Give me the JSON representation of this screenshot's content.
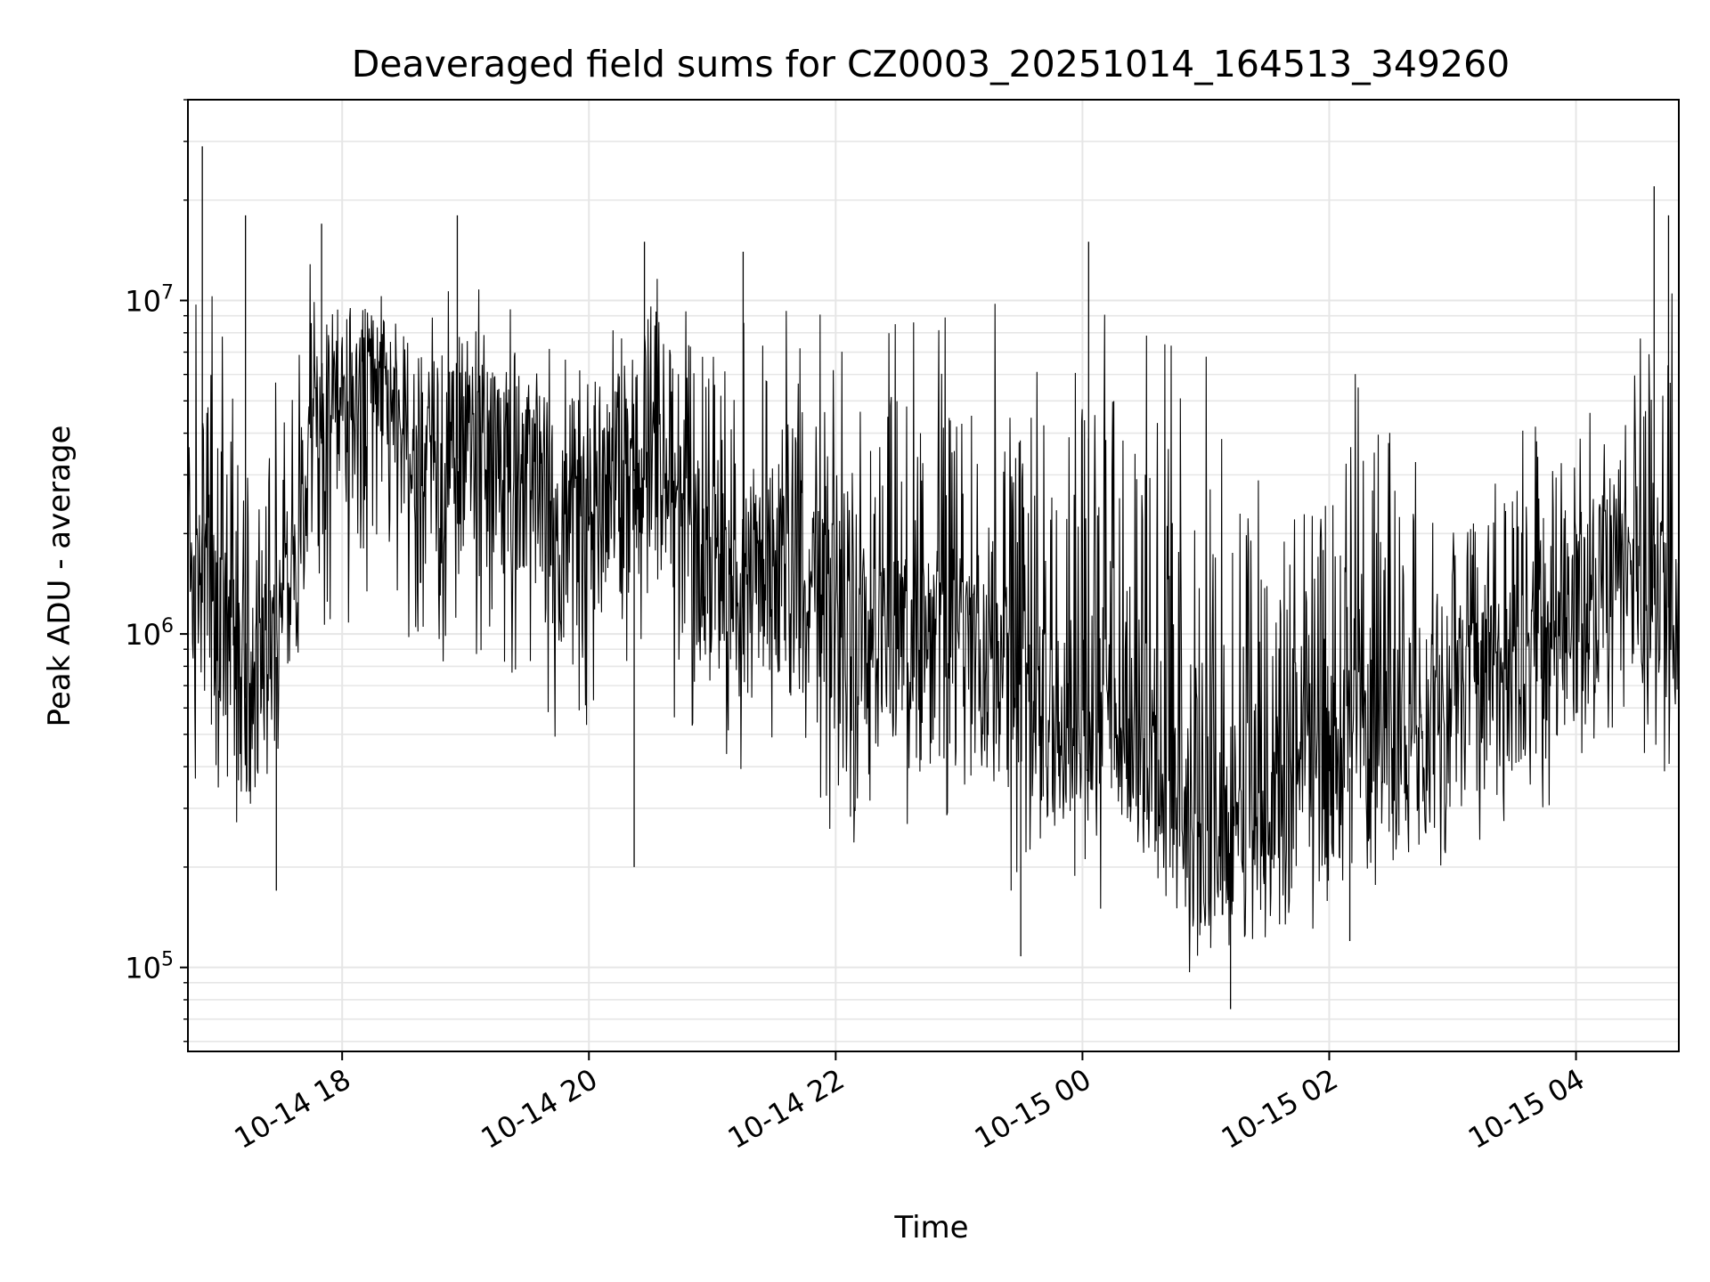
{
  "chart_data": {
    "type": "line",
    "title": "Deaveraged field sums for CZ0003_20251014_164513_349260",
    "xlabel": "Time",
    "ylabel": "Peak ADU - average",
    "xscale": "time",
    "yscale": "log",
    "xlim": [
      "2025-10-14 16:45",
      "2025-10-15 04:50"
    ],
    "ylim": [
      56000,
      40000000
    ],
    "grid": true,
    "line_color": "#000000",
    "x_ticks": [
      {
        "value": "2025-10-14 18:00",
        "label": "10-14 18"
      },
      {
        "value": "2025-10-14 20:00",
        "label": "10-14 20"
      },
      {
        "value": "2025-10-14 22:00",
        "label": "10-14 22"
      },
      {
        "value": "2025-10-15 00:00",
        "label": "10-15 00"
      },
      {
        "value": "2025-10-15 02:00",
        "label": "10-15 02"
      },
      {
        "value": "2025-10-15 04:00",
        "label": "10-15 04"
      }
    ],
    "y_ticks": [
      {
        "value": 100000,
        "base": "10",
        "exp": "5"
      },
      {
        "value": 1000000,
        "base": "10",
        "exp": "6"
      },
      {
        "value": 10000000,
        "base": "10",
        "exp": "7"
      }
    ],
    "series": [
      {
        "x": [
          "2025-10-14 16:45",
          "2025-10-14 17:00",
          "2025-10-14 17:15",
          "2025-10-14 17:30",
          "2025-10-14 17:45",
          "2025-10-14 18:00",
          "2025-10-14 18:15",
          "2025-10-14 18:30",
          "2025-10-14 18:45",
          "2025-10-14 19:00",
          "2025-10-14 19:15",
          "2025-10-14 19:30",
          "2025-10-14 19:45",
          "2025-10-14 20:00",
          "2025-10-14 20:15",
          "2025-10-14 20:30",
          "2025-10-14 20:45",
          "2025-10-14 21:00",
          "2025-10-14 21:15",
          "2025-10-14 21:30",
          "2025-10-14 21:45",
          "2025-10-14 22:00",
          "2025-10-14 22:15",
          "2025-10-14 22:30",
          "2025-10-14 22:45",
          "2025-10-14 23:00",
          "2025-10-14 23:15",
          "2025-10-14 23:30",
          "2025-10-14 23:45",
          "2025-10-15 00:00",
          "2025-10-15 00:15",
          "2025-10-15 00:30",
          "2025-10-15 00:45",
          "2025-10-15 01:00",
          "2025-10-15 01:15",
          "2025-10-15 01:30",
          "2025-10-15 01:45",
          "2025-10-15 02:00",
          "2025-10-15 02:15",
          "2025-10-15 02:30",
          "2025-10-15 02:45",
          "2025-10-15 03:00",
          "2025-10-15 03:15",
          "2025-10-15 03:30",
          "2025-10-15 03:45",
          "2025-10-15 04:00",
          "2025-10-15 04:15",
          "2025-10-15 04:30",
          "2025-10-15 04:45"
        ],
        "y": [
          1500000,
          1000000,
          600000,
          900000,
          3500000,
          4200000,
          4800000,
          3800000,
          3000000,
          3500000,
          3300000,
          2600000,
          1800000,
          2000000,
          2500000,
          3000000,
          2000000,
          1400000,
          1200000,
          1500000,
          1300000,
          1100000,
          900000,
          900000,
          800000,
          750000,
          700000,
          600000,
          500000,
          600000,
          500000,
          400000,
          300000,
          250000,
          220000,
          240000,
          300000,
          350000,
          420000,
          480000,
          500000,
          550000,
          600000,
          700000,
          900000,
          1100000,
          1400000,
          1600000,
          1200000
        ],
        "envelope_low": [
          300000,
          250000,
          220000,
          400000,
          900000,
          1000000,
          1100000,
          900000,
          800000,
          900000,
          800000,
          600000,
          450000,
          400000,
          500000,
          600000,
          450000,
          350000,
          300000,
          320000,
          280000,
          250000,
          220000,
          200000,
          180000,
          180000,
          170000,
          160000,
          150000,
          150000,
          140000,
          120000,
          100000,
          90000,
          100000,
          110000,
          120000,
          140000,
          160000,
          180000,
          190000,
          200000,
          220000,
          250000,
          300000,
          350000,
          400000,
          450000,
          350000
        ],
        "envelope_high": [
          10000000,
          12000000,
          5000000,
          6000000,
          15000000,
          12000000,
          12000000,
          11000000,
          10000000,
          14000000,
          11000000,
          9000000,
          7000000,
          8000000,
          11000000,
          15000000,
          10000000,
          12000000,
          9000000,
          10000000,
          9000000,
          12000000,
          9000000,
          10000000,
          9000000,
          9000000,
          10000000,
          10000000,
          9000000,
          14000000,
          11000000,
          9000000,
          8000000,
          7000000,
          6000000,
          5000000,
          6000000,
          8000000,
          6000000,
          4000000,
          4000000,
          3500000,
          3500000,
          4000000,
          5000000,
          5000000,
          5000000,
          12000000,
          15000000
        ],
        "spikes": [
          {
            "x": "2025-10-14 16:52",
            "y": 29000000
          },
          {
            "x": "2025-10-14 17:13",
            "y": 18000000
          },
          {
            "x": "2025-10-14 17:50",
            "y": 17000000
          },
          {
            "x": "2025-10-14 18:56",
            "y": 18000000
          },
          {
            "x": "2025-10-14 20:27",
            "y": 15000000
          },
          {
            "x": "2025-10-14 21:15",
            "y": 14000000
          },
          {
            "x": "2025-10-15 00:03",
            "y": 15000000
          },
          {
            "x": "2025-10-15 04:38",
            "y": 22000000
          },
          {
            "x": "2025-10-15 04:45",
            "y": 18000000
          },
          {
            "x": "2025-10-15 01:12",
            "y": 75000
          },
          {
            "x": "2025-10-14 17:28",
            "y": 170000
          },
          {
            "x": "2025-10-14 23:30",
            "y": 108000
          },
          {
            "x": "2025-10-15 02:10",
            "y": 120000
          },
          {
            "x": "2025-10-14 20:22",
            "y": 200000
          }
        ]
      }
    ]
  }
}
